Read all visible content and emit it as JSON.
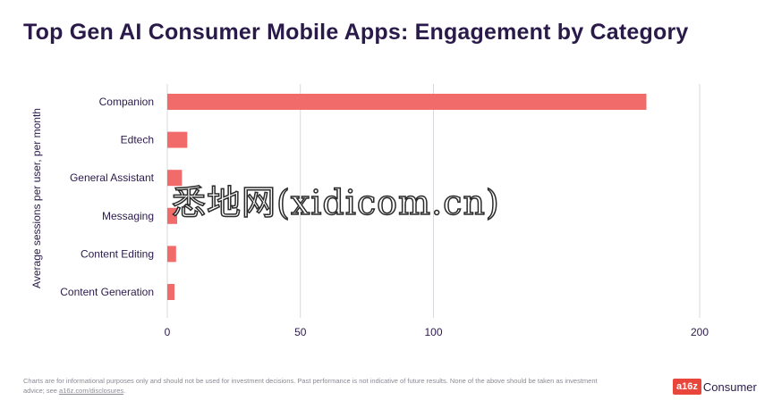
{
  "header": {
    "title": "Top Gen AI Consumer Mobile Apps: Engagement by Category"
  },
  "chart_data": {
    "type": "bar",
    "orientation": "horizontal",
    "title": "Top Gen AI Consumer Mobile Apps: Engagement by Category",
    "ylabel": "Average sessions per user, per month",
    "xlabel": "",
    "categories": [
      "Companion",
      "Edtech",
      "General Assistant",
      "Messaging",
      "Content Editing",
      "Content Generation"
    ],
    "values": [
      180,
      7.5,
      5.5,
      3.7,
      3.3,
      2.7
    ],
    "xlim": [
      0,
      210
    ],
    "xticks": [
      0,
      50,
      100,
      200
    ],
    "xtick_labels": [
      "0",
      "50",
      "100",
      "200"
    ],
    "grid": true,
    "bar_color": "#f26b6b",
    "grid_color": "#d8d8de",
    "text_color": "#2a1a4a"
  },
  "footer": {
    "disclaimer": "Charts are for informational purposes only and should not be used for investment decisions. Past performance is not indicative of future results. None of the above should be taken as investment advice; see",
    "link": "a16z.com/disclosures",
    "end": "."
  },
  "brand": {
    "badge": "a16z",
    "name": "Consumer",
    "color": "#e8463a"
  },
  "watermark": {
    "text": "悉地网(xidicom.cn)"
  }
}
